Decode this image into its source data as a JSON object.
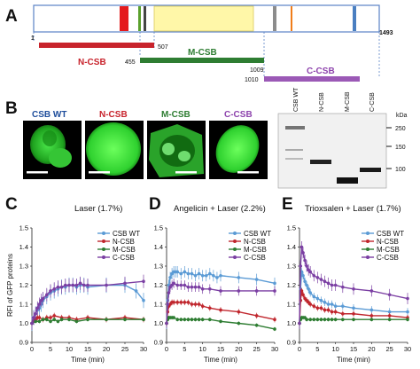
{
  "panels": {
    "a": {
      "letter": "A",
      "start": "1",
      "end": "1493",
      "fragments": [
        {
          "name": "N-CSB",
          "from": "1",
          "to": "507",
          "color": "#c8232c"
        },
        {
          "name": "M-CSB",
          "from": "455",
          "to": "1009",
          "color": "#2e7d32"
        },
        {
          "name": "C-CSB",
          "from": "1010",
          "to": "1493",
          "color": "#8e44ad"
        }
      ]
    },
    "b": {
      "letter": "B",
      "cells": [
        {
          "label": "CSB WT",
          "color": "#1f4e9c"
        },
        {
          "label": "N-CSB",
          "color": "#c8232c"
        },
        {
          "label": "M-CSB",
          "color": "#2e7d32"
        },
        {
          "label": "C-CSB",
          "color": "#8e44ad"
        }
      ],
      "blot_lanes": [
        "CSB WT",
        "N-CSB",
        "M-CSB",
        "C-CSB"
      ],
      "kda_label": "kDa",
      "kda_marks": [
        "250",
        "150",
        "100"
      ]
    },
    "c": {
      "letter": "C"
    },
    "d": {
      "letter": "D"
    },
    "e": {
      "letter": "E"
    }
  },
  "chart_data": [
    {
      "type": "line",
      "title": "Laser (1.7%)",
      "xlabel": "Time (min)",
      "ylabel": "RFI of GFP proteins",
      "xlim": [
        0,
        30
      ],
      "ylim": [
        0.9,
        1.5
      ],
      "xticks": [
        0,
        5,
        10,
        15,
        20,
        25,
        30
      ],
      "yticks": [
        0.9,
        1.0,
        1.1,
        1.2,
        1.3,
        1.4,
        1.5
      ],
      "legend": "top-right",
      "series": [
        {
          "name": "CSB WT",
          "color": "#5b9bd5",
          "x": [
            0,
            0.5,
            1,
            1.5,
            2,
            2.5,
            3,
            4,
            5,
            6,
            7,
            8,
            9,
            10,
            11,
            12,
            13,
            14,
            15,
            20,
            25,
            28,
            30
          ],
          "y": [
            1.0,
            1.03,
            1.05,
            1.07,
            1.08,
            1.1,
            1.12,
            1.14,
            1.16,
            1.17,
            1.18,
            1.19,
            1.19,
            1.2,
            1.2,
            1.19,
            1.2,
            1.2,
            1.19,
            1.2,
            1.2,
            1.17,
            1.12
          ],
          "err": 0.04
        },
        {
          "name": "N-CSB",
          "color": "#c0262d",
          "x": [
            0,
            0.5,
            1,
            1.5,
            2,
            3,
            4,
            5,
            6,
            8,
            10,
            12,
            15,
            20,
            25,
            30
          ],
          "y": [
            1.0,
            1.01,
            1.02,
            1.03,
            1.03,
            1.02,
            1.03,
            1.03,
            1.04,
            1.03,
            1.03,
            1.02,
            1.03,
            1.02,
            1.03,
            1.02
          ],
          "err": 0.015
        },
        {
          "name": "M-CSB",
          "color": "#2e7d32",
          "x": [
            0,
            1,
            2,
            3,
            4,
            5,
            6,
            7,
            8,
            10,
            12,
            15,
            20,
            25,
            30
          ],
          "y": [
            1.0,
            1.01,
            1.01,
            1.02,
            1.02,
            1.01,
            1.02,
            1.01,
            1.02,
            1.02,
            1.01,
            1.02,
            1.02,
            1.02,
            1.02
          ],
          "err": 0.01
        },
        {
          "name": "C-CSB",
          "color": "#7b3fa3",
          "x": [
            0,
            0.5,
            1,
            1.5,
            2,
            2.5,
            3,
            4,
            5,
            6,
            7,
            8,
            9,
            10,
            11,
            12,
            13,
            14,
            15,
            20,
            25,
            30
          ],
          "y": [
            1.0,
            1.03,
            1.05,
            1.08,
            1.1,
            1.12,
            1.13,
            1.15,
            1.17,
            1.18,
            1.19,
            1.19,
            1.2,
            1.2,
            1.2,
            1.2,
            1.21,
            1.2,
            1.2,
            1.2,
            1.21,
            1.22
          ],
          "err": 0.035
        }
      ]
    },
    {
      "type": "line",
      "title": "Angelicin + Laser (2.2%)",
      "xlabel": "Time (min)",
      "ylabel": "",
      "xlim": [
        0,
        30
      ],
      "ylim": [
        0.9,
        1.5
      ],
      "xticks": [
        0,
        5,
        10,
        15,
        20,
        25,
        30
      ],
      "yticks": [
        0.9,
        1.0,
        1.1,
        1.2,
        1.3,
        1.4,
        1.5
      ],
      "legend": "top-right",
      "series": [
        {
          "name": "CSB WT",
          "color": "#5b9bd5",
          "x": [
            0,
            0.3,
            0.6,
            1,
            1.5,
            2,
            2.5,
            3,
            4,
            5,
            6,
            7,
            8,
            9,
            10,
            11,
            12,
            13,
            14,
            15,
            20,
            25,
            30
          ],
          "y": [
            1.0,
            1.12,
            1.2,
            1.24,
            1.26,
            1.27,
            1.27,
            1.27,
            1.26,
            1.27,
            1.26,
            1.26,
            1.25,
            1.26,
            1.25,
            1.25,
            1.26,
            1.25,
            1.24,
            1.25,
            1.24,
            1.23,
            1.21
          ],
          "err": 0.03
        },
        {
          "name": "N-CSB",
          "color": "#c0262d",
          "x": [
            0,
            0.3,
            0.6,
            1,
            1.5,
            2,
            3,
            4,
            5,
            6,
            7,
            8,
            9,
            10,
            12,
            15,
            20,
            25,
            30
          ],
          "y": [
            1.0,
            1.06,
            1.09,
            1.1,
            1.11,
            1.11,
            1.11,
            1.11,
            1.11,
            1.11,
            1.1,
            1.1,
            1.1,
            1.09,
            1.08,
            1.07,
            1.06,
            1.04,
            1.02
          ],
          "err": 0.015
        },
        {
          "name": "M-CSB",
          "color": "#2e7d32",
          "x": [
            0,
            0.3,
            0.6,
            1,
            1.5,
            2,
            3,
            4,
            5,
            6,
            7,
            8,
            9,
            10,
            12,
            15,
            20,
            25,
            30
          ],
          "y": [
            1.0,
            1.02,
            1.03,
            1.03,
            1.03,
            1.03,
            1.02,
            1.02,
            1.02,
            1.02,
            1.02,
            1.02,
            1.02,
            1.02,
            1.02,
            1.01,
            1.0,
            0.99,
            0.97
          ],
          "err": 0.01
        },
        {
          "name": "C-CSB",
          "color": "#7b3fa3",
          "x": [
            0,
            0.3,
            0.6,
            1,
            1.5,
            2,
            3,
            4,
            5,
            6,
            7,
            8,
            9,
            10,
            12,
            15,
            20,
            25,
            30
          ],
          "y": [
            1.0,
            1.1,
            1.16,
            1.19,
            1.2,
            1.21,
            1.2,
            1.2,
            1.2,
            1.19,
            1.19,
            1.19,
            1.19,
            1.18,
            1.18,
            1.17,
            1.17,
            1.17,
            1.17
          ],
          "err": 0.025
        }
      ]
    },
    {
      "type": "line",
      "title": "Trioxsalen + Laser (1.7%)",
      "xlabel": "Time (min)",
      "ylabel": "",
      "xlim": [
        0,
        30
      ],
      "ylim": [
        0.9,
        1.5
      ],
      "xticks": [
        0,
        5,
        10,
        15,
        20,
        25,
        30
      ],
      "yticks": [
        0.9,
        1.0,
        1.1,
        1.2,
        1.3,
        1.4,
        1.5
      ],
      "legend": "top-right",
      "series": [
        {
          "name": "CSB WT",
          "color": "#5b9bd5",
          "x": [
            0,
            0.3,
            0.6,
            1,
            1.5,
            2,
            2.5,
            3,
            4,
            5,
            6,
            7,
            8,
            9,
            10,
            12,
            15,
            20,
            25,
            30
          ],
          "y": [
            1.0,
            1.18,
            1.27,
            1.25,
            1.22,
            1.2,
            1.18,
            1.16,
            1.14,
            1.13,
            1.12,
            1.11,
            1.1,
            1.1,
            1.09,
            1.09,
            1.08,
            1.07,
            1.06,
            1.06
          ],
          "err": 0.02
        },
        {
          "name": "N-CSB",
          "color": "#c0262d",
          "x": [
            0,
            0.3,
            0.6,
            1,
            1.5,
            2,
            2.5,
            3,
            4,
            5,
            6,
            7,
            8,
            9,
            10,
            12,
            15,
            20,
            25,
            30
          ],
          "y": [
            1.0,
            1.12,
            1.17,
            1.15,
            1.13,
            1.12,
            1.11,
            1.1,
            1.09,
            1.08,
            1.08,
            1.07,
            1.07,
            1.06,
            1.06,
            1.05,
            1.05,
            1.04,
            1.04,
            1.03
          ],
          "err": 0.015
        },
        {
          "name": "M-CSB",
          "color": "#2e7d32",
          "x": [
            0,
            0.3,
            0.6,
            1,
            1.5,
            2,
            3,
            4,
            5,
            6,
            7,
            8,
            9,
            10,
            12,
            15,
            20,
            25,
            30
          ],
          "y": [
            1.0,
            1.02,
            1.03,
            1.03,
            1.03,
            1.02,
            1.02,
            1.02,
            1.02,
            1.02,
            1.02,
            1.02,
            1.02,
            1.02,
            1.02,
            1.02,
            1.02,
            1.02,
            1.02
          ],
          "err": 0.01
        },
        {
          "name": "C-CSB",
          "color": "#7b3fa3",
          "x": [
            0,
            0.3,
            0.6,
            1,
            1.5,
            2,
            2.5,
            3,
            4,
            5,
            6,
            7,
            8,
            9,
            10,
            12,
            15,
            20,
            25,
            30
          ],
          "y": [
            1.0,
            1.3,
            1.4,
            1.37,
            1.33,
            1.3,
            1.28,
            1.27,
            1.25,
            1.24,
            1.23,
            1.22,
            1.21,
            1.2,
            1.2,
            1.19,
            1.18,
            1.17,
            1.15,
            1.13
          ],
          "err": 0.03
        }
      ]
    }
  ]
}
